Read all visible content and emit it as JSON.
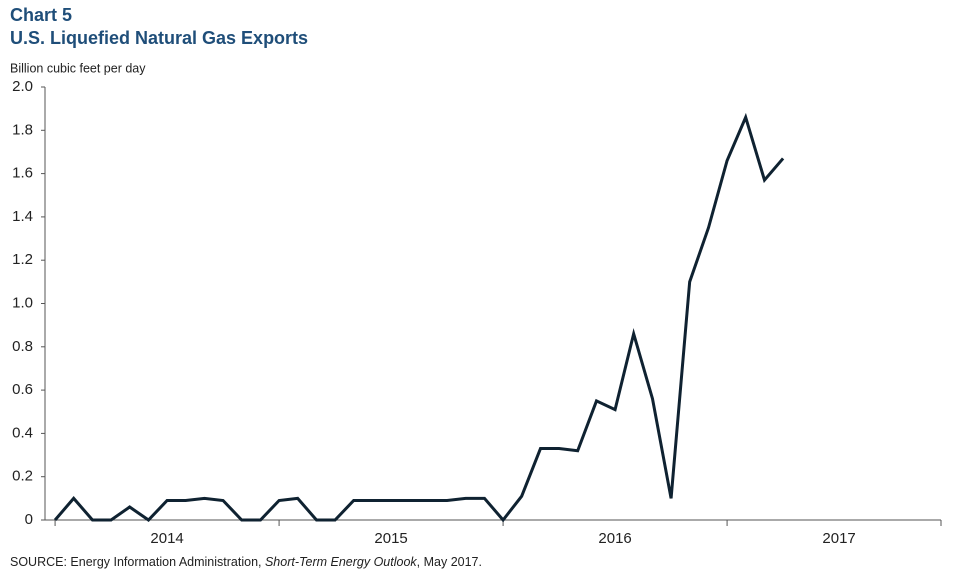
{
  "chart_data": {
    "type": "line",
    "title": "Chart 5",
    "subtitle": "U.S. Liquefied Natural Gas Exports",
    "y_label": "Billion cubic feet per day",
    "source": [
      "SOURCE: Energy Information Administration, ",
      "Short-Term Energy Outlook",
      ", May 2017."
    ],
    "x": [
      2014,
      2014.083,
      2014.167,
      2014.25,
      2014.333,
      2014.417,
      2014.5,
      2014.583,
      2014.667,
      2014.75,
      2014.833,
      2014.917,
      2015,
      2015.083,
      2015.167,
      2015.25,
      2015.333,
      2015.417,
      2015.5,
      2015.583,
      2015.667,
      2015.75,
      2015.833,
      2015.917,
      2016,
      2016.083,
      2016.167,
      2016.25,
      2016.333,
      2016.417,
      2016.5,
      2016.583,
      2016.667,
      2016.75,
      2016.833,
      2016.917,
      2017,
      2017.083,
      2017.167,
      2017.25
    ],
    "series": [
      {
        "name": "LNG exports",
        "color": "#0f2231",
        "values": [
          0,
          0.1,
          0,
          0,
          0.06,
          0,
          0.09,
          0.09,
          0.1,
          0.09,
          0,
          0,
          0.09,
          0.1,
          0,
          0,
          0.09,
          0.09,
          0.09,
          0.09,
          0.09,
          0.09,
          0.1,
          0.1,
          0,
          0.11,
          0.33,
          0.33,
          0.32,
          0.55,
          0.51,
          0.86,
          0.56,
          0.1,
          1.1,
          1.35,
          1.66,
          1.86,
          1.57,
          1.67
        ]
      }
    ],
    "xlim": [
      2013.955,
      2017.955
    ],
    "xticks": [
      {
        "value": 2014,
        "label": "2014"
      },
      {
        "value": 2015,
        "label": "2015"
      },
      {
        "value": 2016,
        "label": "2016"
      },
      {
        "value": 2017,
        "label": "2017"
      }
    ],
    "ylim": [
      0,
      2
    ],
    "yticks": [
      0,
      0.2,
      0.4,
      0.6,
      0.8,
      {
        "value": 1,
        "label": "1.0"
      },
      1.2,
      1.4,
      1.6,
      1.8,
      {
        "value": 2,
        "label": "2.0"
      }
    ],
    "grid": false
  }
}
